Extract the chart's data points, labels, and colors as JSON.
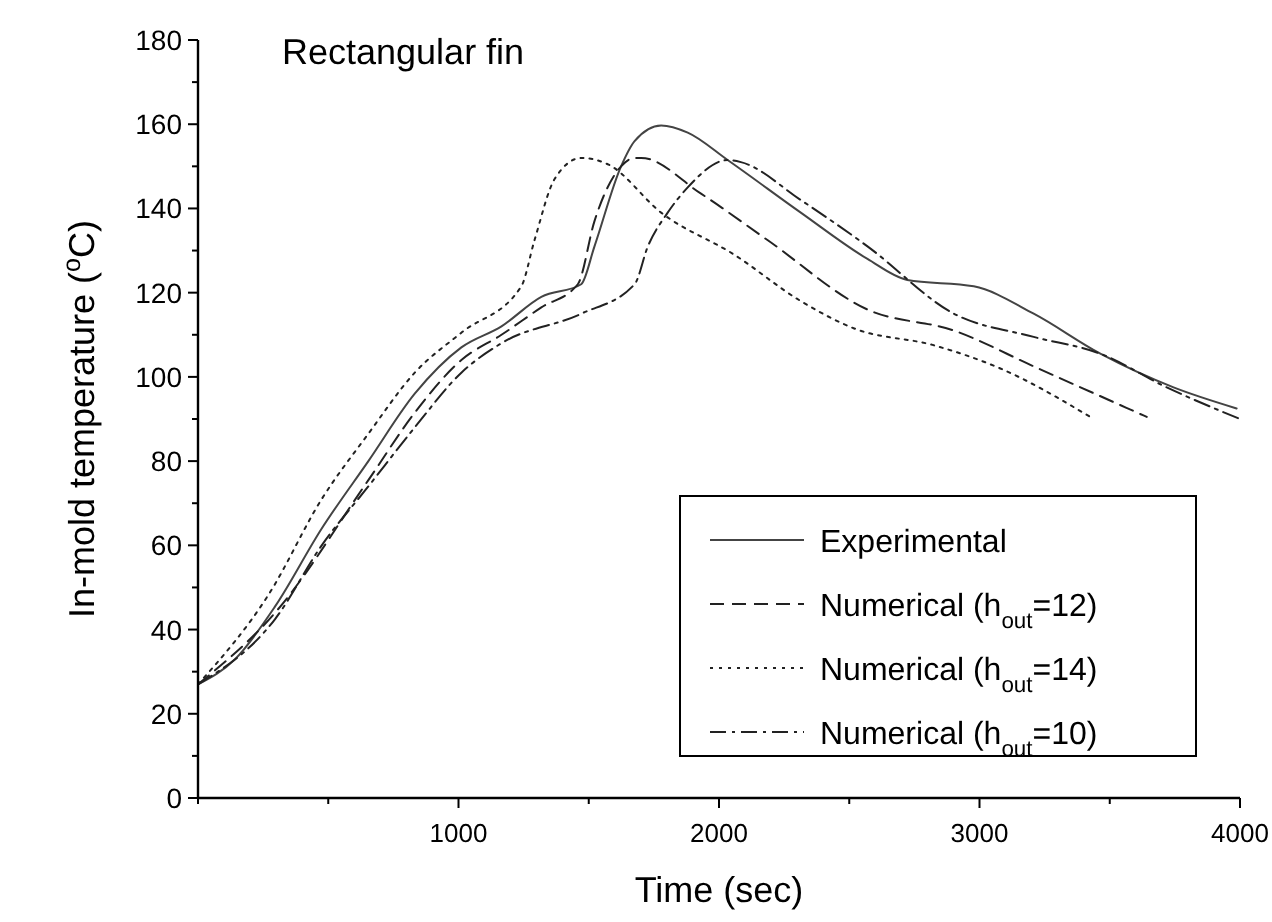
{
  "chart_data": {
    "type": "line",
    "title": "Rectangular fin",
    "xlabel": "Time (sec)",
    "ylabel": "In-mold temperature ($^{o}$C)",
    "xlim": [
      0,
      4000
    ],
    "ylim": [
      0,
      180
    ],
    "xticks": [
      {
        "value": 0,
        "label": null
      },
      {
        "value": 500,
        "label": null
      },
      1000,
      {
        "value": 1500,
        "label": null
      },
      2000,
      {
        "value": 2500,
        "label": null
      },
      3000,
      {
        "value": 3500,
        "label": null
      },
      4000
    ],
    "yticks": [
      0,
      {
        "value": 10,
        "label": null
      },
      20,
      {
        "value": 30,
        "label": null
      },
      40,
      {
        "value": 50,
        "label": null
      },
      60,
      {
        "value": 70,
        "label": null
      },
      80,
      {
        "value": 90,
        "label": null
      },
      100,
      {
        "value": 110,
        "label": null
      },
      120,
      {
        "value": 130,
        "label": null
      },
      140,
      {
        "value": 150,
        "label": null
      },
      160,
      {
        "value": 170,
        "label": null
      },
      180
    ],
    "grid": false,
    "legend": "bottom right",
    "series": [
      {
        "name": "Experimental",
        "color": "#444444",
        "line_style": "solid",
        "x": [
          0,
          143,
          296,
          475,
          654,
          832,
          1011,
          1165,
          1318,
          1471,
          1522,
          1624,
          1676,
          1778,
          1880,
          2033,
          2314,
          2570,
          2723,
          2978,
          3208,
          3464,
          3745,
          3987
        ],
        "values": [
          27,
          33,
          45.5,
          64,
          80,
          96,
          107,
          112,
          119,
          122,
          131,
          150,
          156,
          159.7,
          158,
          151.5,
          139,
          128,
          123,
          121.5,
          115,
          105.5,
          97.5,
          92.5
        ]
      },
      {
        "name": "Numerical (h$_{out}$=12)",
        "color": "#222222",
        "line_style": "dashed",
        "x": [
          0,
          296,
          654,
          832,
          1011,
          1165,
          1318,
          1458,
          1522,
          1624,
          1676,
          1701,
          1931,
          2186,
          2570,
          2902,
          3208,
          3642
        ],
        "values": [
          27,
          44,
          75.5,
          91.5,
          104,
          110,
          116.5,
          122,
          137,
          150,
          152,
          152,
          143.5,
          132.5,
          116,
          111,
          102.5,
          90.5
        ]
      },
      {
        "name": "Numerical (h$_{out}$=14)",
        "color": "#222222",
        "line_style": "dotted",
        "x": [
          0,
          273,
          475,
          654,
          832,
          1011,
          1241,
          1292,
          1369,
          1471,
          1573,
          1778,
          2059,
          2314,
          2519,
          2825,
          3080,
          3425
        ],
        "values": [
          27,
          48.5,
          71,
          86.5,
          101,
          110.5,
          121.5,
          132.5,
          147,
          152,
          150.5,
          139,
          129,
          118,
          111.5,
          107.5,
          102,
          90.5
        ]
      },
      {
        "name": "Numerical (h$_{out}$=10)",
        "color": "#222222",
        "line_style": "dashdot",
        "x": [
          0,
          296,
          475,
          654,
          832,
          1011,
          1165,
          1471,
          1676,
          1727,
          1803,
          1880,
          2033,
          2084,
          2314,
          2570,
          2902,
          3208,
          3464,
          3719,
          4000
        ],
        "values": [
          27,
          42.5,
          60,
          74,
          88,
          101,
          108,
          115,
          122,
          131,
          139,
          145,
          151.5,
          151,
          142,
          131,
          115,
          109.5,
          105.5,
          97.5,
          90
        ]
      }
    ]
  }
}
